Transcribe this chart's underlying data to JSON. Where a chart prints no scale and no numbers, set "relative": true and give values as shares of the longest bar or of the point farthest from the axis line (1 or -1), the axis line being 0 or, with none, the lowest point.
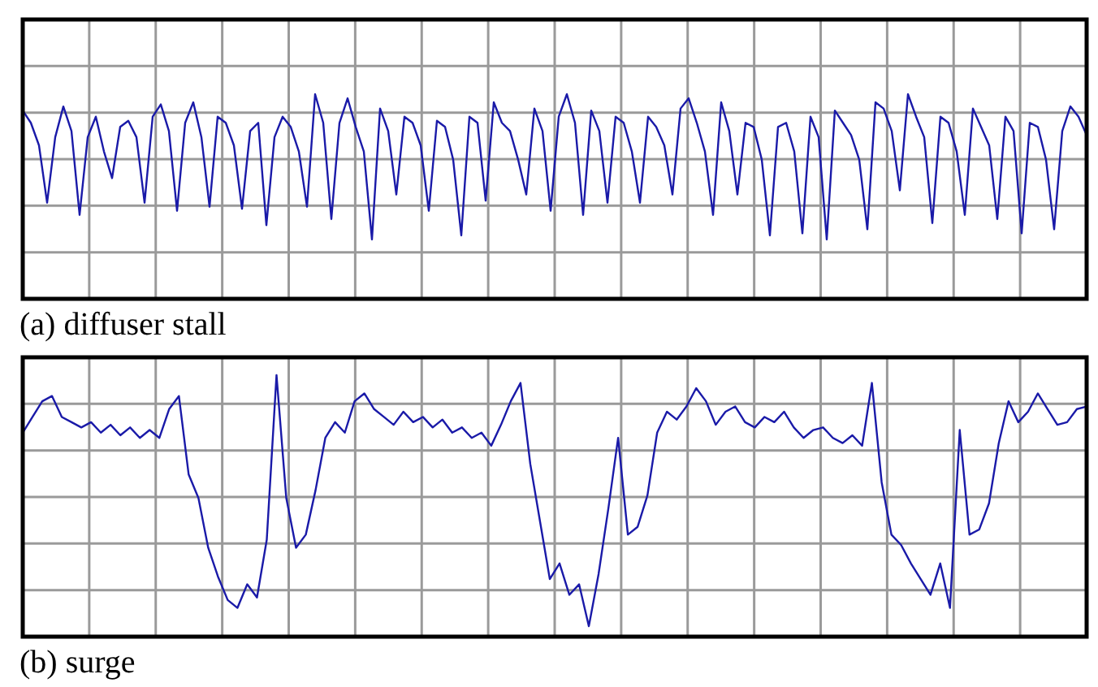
{
  "chart_data": [
    {
      "type": "line",
      "title": "(a) diffuser stall",
      "relative": true,
      "grid": true,
      "categories": [
        null,
        null,
        null,
        null,
        null,
        null,
        null,
        null,
        null,
        null,
        null,
        null,
        null,
        null,
        null,
        null,
        null,
        null,
        null,
        null,
        null,
        null,
        null,
        null,
        null,
        null,
        null,
        null,
        null,
        null,
        null,
        null,
        null,
        null,
        null,
        null,
        null,
        null,
        null,
        null,
        null,
        null,
        null,
        null,
        null,
        null,
        null,
        null,
        null,
        null,
        null,
        null,
        null,
        null,
        null,
        null,
        null,
        null,
        null,
        null,
        null,
        null,
        null,
        null,
        null,
        null,
        null,
        null,
        null,
        null,
        null,
        null,
        null,
        null,
        null,
        null,
        null,
        null,
        null,
        null,
        null,
        null,
        null,
        null,
        null,
        null,
        null,
        null,
        null,
        null,
        null,
        null,
        null,
        null,
        null,
        null,
        null,
        null,
        null,
        null,
        null,
        null,
        null,
        null,
        null,
        null,
        null,
        null,
        null,
        null,
        null,
        null,
        null,
        null,
        null,
        null,
        null,
        null,
        null,
        null,
        null,
        null,
        null,
        null,
        null,
        null,
        null,
        null,
        null,
        null,
        null,
        null
      ],
      "series": [
        {
          "color": "#1a1aa8",
          "values": [
            0.92,
            0.86,
            0.75,
            0.47,
            0.79,
            0.94,
            0.82,
            0.41,
            0.79,
            0.89,
            0.72,
            0.59,
            0.84,
            0.87,
            0.79,
            0.47,
            0.89,
            0.95,
            0.82,
            0.43,
            0.86,
            0.96,
            0.79,
            0.45,
            0.89,
            0.86,
            0.75,
            0.44,
            0.82,
            0.86,
            0.36,
            0.79,
            0.89,
            0.84,
            0.72,
            0.45,
            1,
            0.86,
            0.39,
            0.86,
            0.98,
            0.84,
            0.72,
            0.29,
            0.93,
            0.82,
            0.51,
            0.89,
            0.86,
            0.75,
            0.43,
            0.87,
            0.84,
            0.68,
            0.31,
            0.89,
            0.86,
            0.48,
            0.96,
            0.86,
            0.82,
            0.68,
            0.51,
            0.93,
            0.82,
            0.43,
            0.89,
            1,
            0.86,
            0.41,
            0.92,
            0.82,
            0.47,
            0.89,
            0.86,
            0.72,
            0.47,
            0.89,
            0.84,
            0.75,
            0.51,
            0.93,
            0.98,
            0.86,
            0.72,
            0.41,
            0.96,
            0.82,
            0.51,
            0.86,
            0.84,
            0.68,
            0.31,
            0.84,
            0.86,
            0.72,
            0.32,
            0.89,
            0.79,
            0.29,
            0.92,
            0.86,
            0.8,
            0.68,
            0.34,
            0.96,
            0.93,
            0.82,
            0.53,
            1,
            0.89,
            0.79,
            0.37,
            0.89,
            0.86,
            0.72,
            0.41,
            0.93,
            0.84,
            0.75,
            0.39,
            0.89,
            0.82,
            0.32,
            0.86,
            0.84,
            0.68,
            0.34,
            0.82,
            0.94,
            0.89,
            0.8
          ]
        }
      ]
    },
    {
      "type": "line",
      "title": "(b) surge",
      "relative": true,
      "grid": true,
      "categories": [
        null,
        null,
        null,
        null,
        null,
        null,
        null,
        null,
        null,
        null,
        null,
        null,
        null,
        null,
        null,
        null,
        null,
        null,
        null,
        null,
        null,
        null,
        null,
        null,
        null,
        null,
        null,
        null,
        null,
        null,
        null,
        null,
        null,
        null,
        null,
        null,
        null,
        null,
        null,
        null,
        null,
        null,
        null,
        null,
        null,
        null,
        null,
        null,
        null,
        null,
        null,
        null,
        null,
        null,
        null,
        null,
        null,
        null,
        null,
        null,
        null,
        null,
        null,
        null,
        null,
        null,
        null,
        null,
        null,
        null,
        null,
        null,
        null,
        null,
        null,
        null,
        null,
        null,
        null,
        null,
        null,
        null,
        null,
        null,
        null,
        null,
        null,
        null,
        null,
        null,
        null,
        null,
        null,
        null,
        null,
        null,
        null,
        null,
        null,
        null,
        null,
        null,
        null,
        null,
        null,
        null,
        null,
        null,
        null,
        null
      ],
      "series": [
        {
          "color": "#1a1aa8",
          "values": [
            0.78,
            0.84,
            0.9,
            0.92,
            0.84,
            0.82,
            0.8,
            0.82,
            0.78,
            0.81,
            0.77,
            0.8,
            0.76,
            0.79,
            0.76,
            0.87,
            0.92,
            0.62,
            0.53,
            0.34,
            0.23,
            0.14,
            0.11,
            0.2,
            0.15,
            0.37,
            1,
            0.53,
            0.34,
            0.39,
            0.56,
            0.76,
            0.82,
            0.78,
            0.9,
            0.93,
            0.87,
            0.84,
            0.81,
            0.86,
            0.82,
            0.84,
            0.8,
            0.83,
            0.78,
            0.8,
            0.76,
            0.78,
            0.73,
            0.81,
            0.9,
            0.97,
            0.66,
            0.44,
            0.22,
            0.28,
            0.16,
            0.2,
            0.04,
            0.24,
            0.49,
            0.76,
            0.39,
            0.42,
            0.54,
            0.78,
            0.86,
            0.83,
            0.88,
            0.95,
            0.9,
            0.81,
            0.86,
            0.88,
            0.82,
            0.8,
            0.84,
            0.82,
            0.86,
            0.8,
            0.76,
            0.79,
            0.8,
            0.76,
            0.74,
            0.77,
            0.73,
            0.97,
            0.59,
            0.39,
            0.35,
            0.28,
            0.22,
            0.16,
            0.28,
            0.11,
            0.79,
            0.39,
            0.41,
            0.51,
            0.74,
            0.9,
            0.82,
            0.86,
            0.93,
            0.87,
            0.81,
            0.82,
            0.87,
            0.88
          ]
        }
      ]
    }
  ]
}
